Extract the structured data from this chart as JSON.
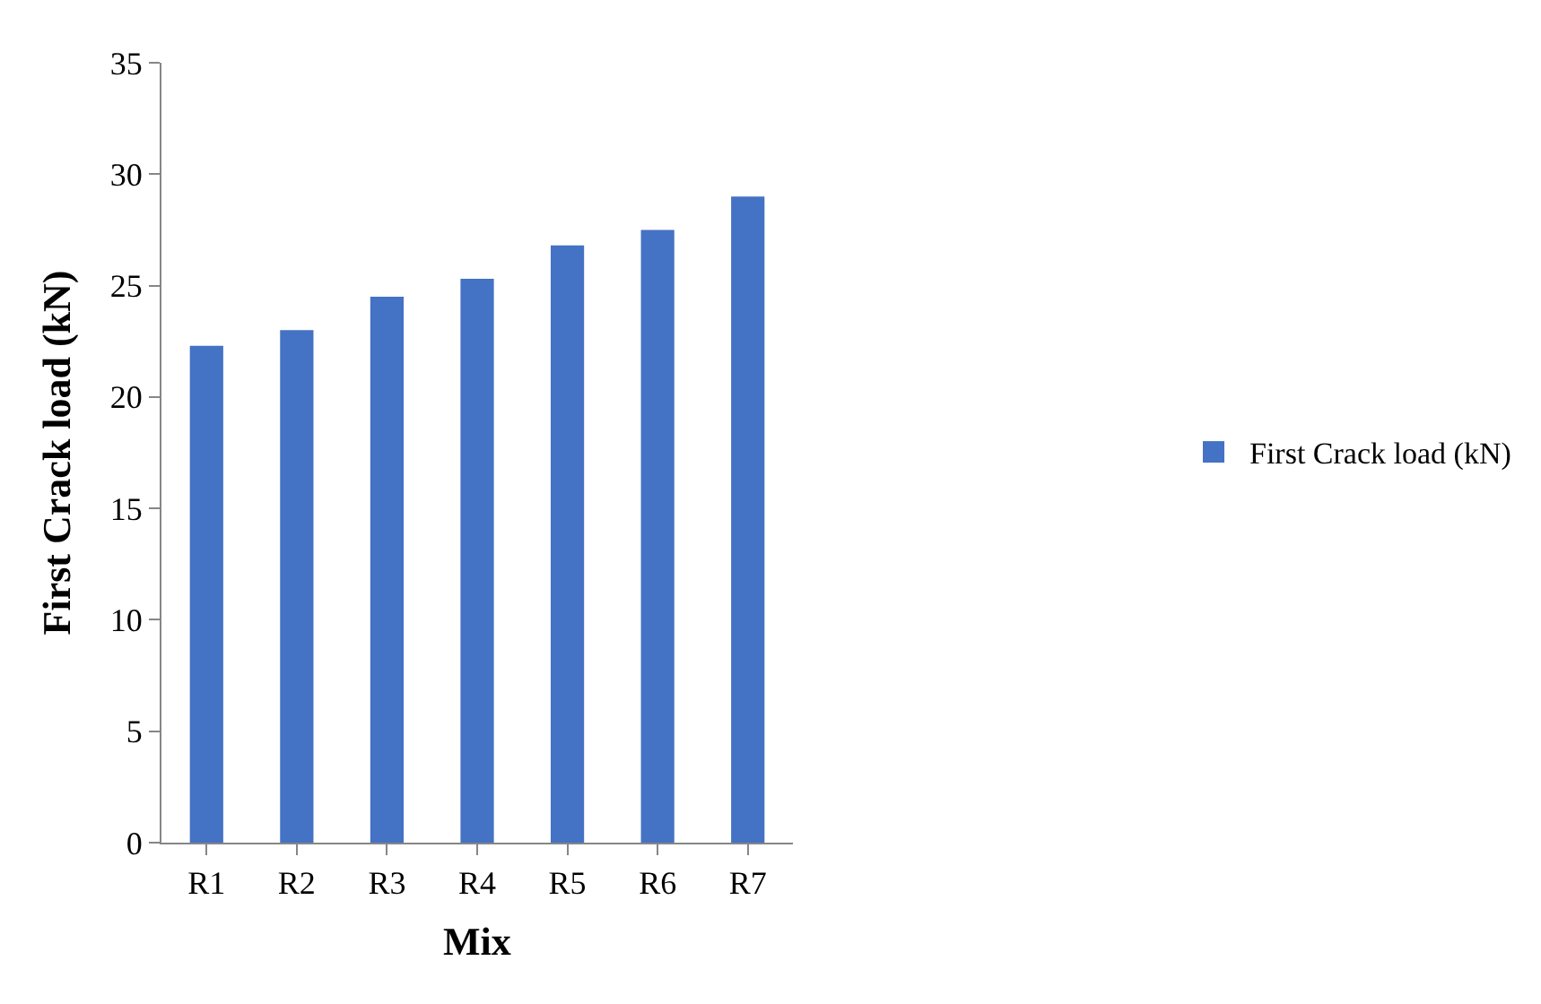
{
  "chart_data": {
    "type": "bar",
    "xlabel": "Mix",
    "ylabel": "First Crack load (kN)",
    "categories": [
      "R1",
      "R2",
      "R3",
      "R4",
      "R5",
      "R6",
      "R7"
    ],
    "series": [
      {
        "name": "First Crack load (kN)",
        "color": "#4472c4",
        "values": [
          22.3,
          23.0,
          24.5,
          25.3,
          26.8,
          27.5,
          29.0
        ]
      }
    ],
    "ylim": [
      0,
      35
    ],
    "yticks": [
      0,
      5,
      10,
      15,
      20,
      25,
      30,
      35
    ],
    "legend": "right"
  }
}
